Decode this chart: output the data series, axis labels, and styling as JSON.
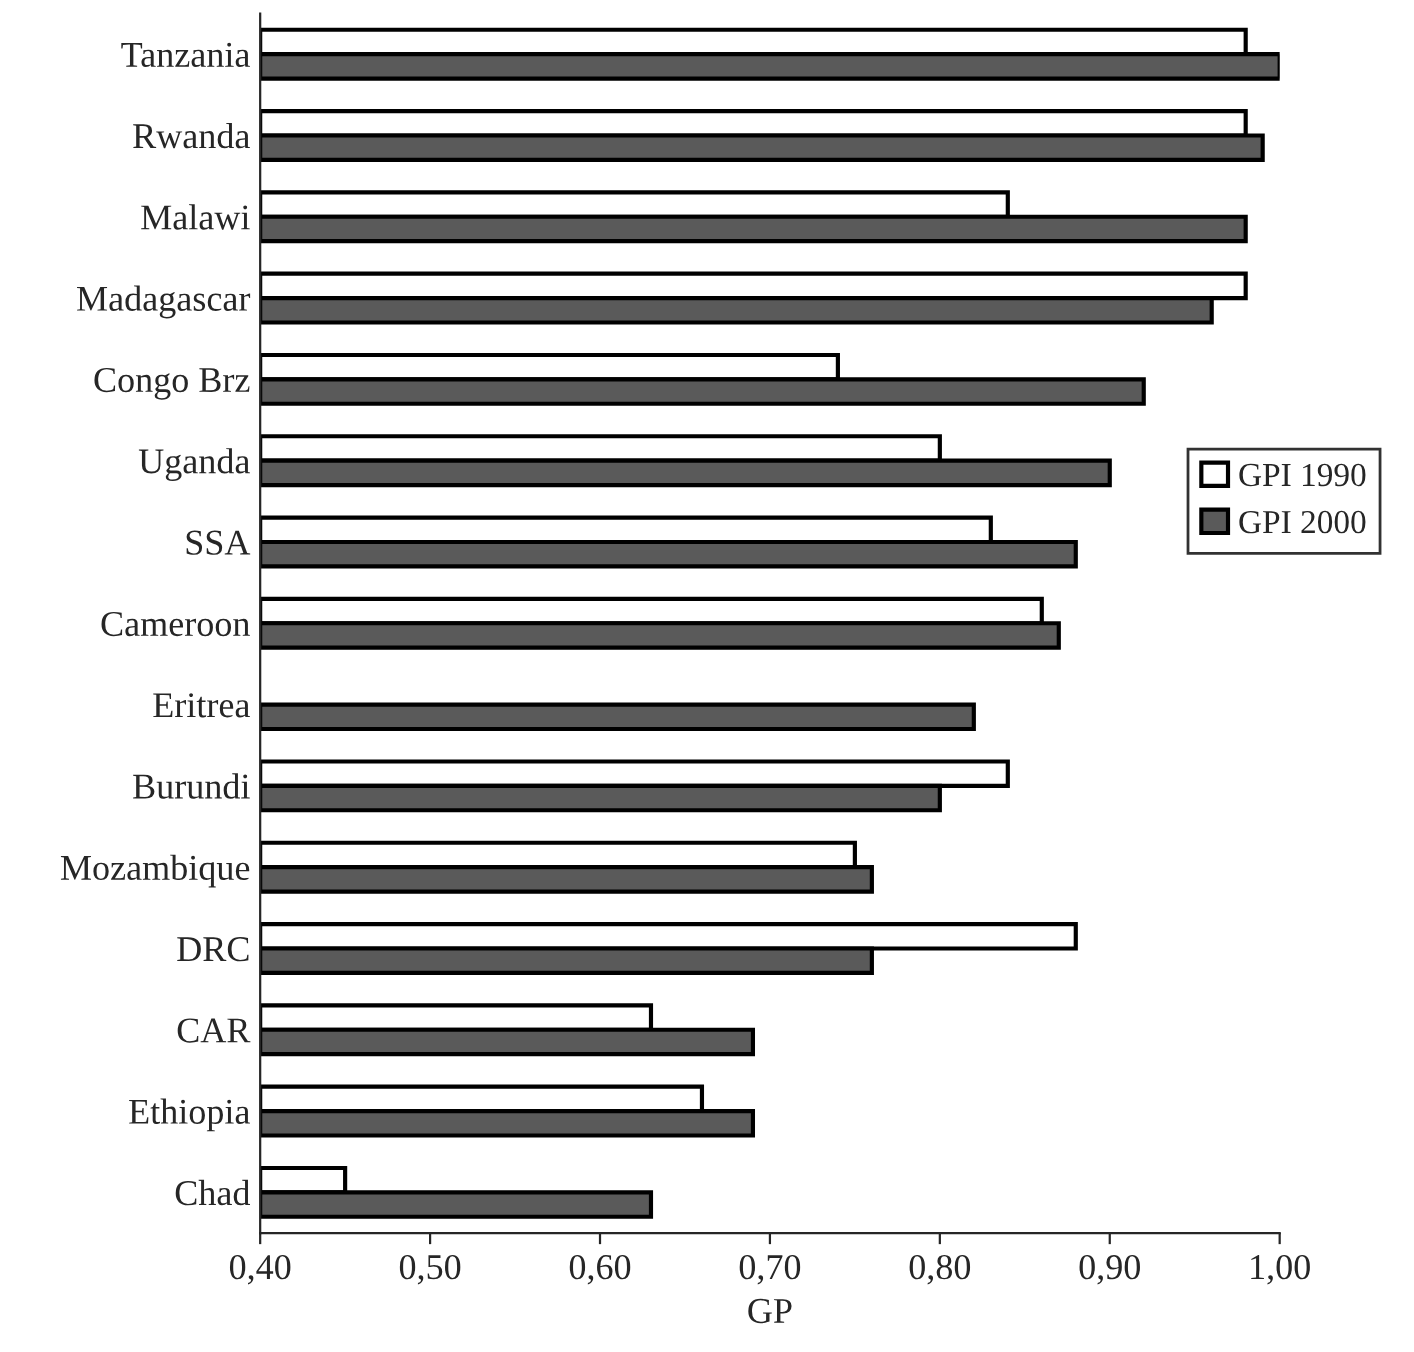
{
  "chart_data": {
    "type": "bar",
    "orientation": "horizontal",
    "xlabel": "GP",
    "categories": [
      "Tanzania",
      "Rwanda",
      "Malawi",
      "Madagascar",
      "Congo Brz",
      "Uganda",
      "SSA",
      "Cameroon",
      "Eritrea",
      "Burundi",
      "Mozambique",
      "DRC",
      "CAR",
      "Ethiopia",
      "Chad"
    ],
    "series": [
      {
        "name": "GPI 1990",
        "color": "#ffffff",
        "values": [
          0.98,
          0.98,
          0.84,
          0.98,
          0.74,
          0.8,
          0.83,
          0.86,
          null,
          0.84,
          0.75,
          0.88,
          0.63,
          0.66,
          0.45
        ]
      },
      {
        "name": "GPI 2000",
        "color": "#5a5a5a",
        "values": [
          1.0,
          0.99,
          0.98,
          0.96,
          0.92,
          0.9,
          0.88,
          0.87,
          0.82,
          0.8,
          0.76,
          0.76,
          0.69,
          0.69,
          0.63
        ]
      }
    ],
    "xlim": [
      0.4,
      1.0
    ],
    "xticks": [
      {
        "value": 0.4,
        "label": "0,40"
      },
      {
        "value": 0.5,
        "label": "0,50"
      },
      {
        "value": 0.6,
        "label": "0,60"
      },
      {
        "value": 0.7,
        "label": "0,70"
      },
      {
        "value": 0.8,
        "label": "0,80"
      },
      {
        "value": 0.9,
        "label": "0,90"
      },
      {
        "value": 1.0,
        "label": "1,00"
      }
    ],
    "legend": "right"
  }
}
